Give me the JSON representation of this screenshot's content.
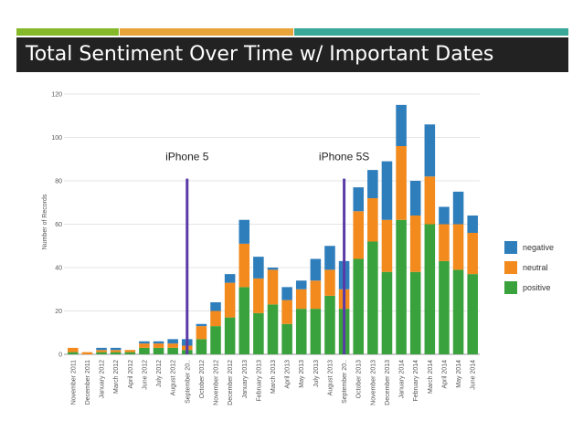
{
  "slide": {
    "title": "Total Sentiment Over Time w/ Important Dates"
  },
  "colors": {
    "accent_green": "#86b92a",
    "accent_orange": "#e8a33a",
    "accent_teal": "#3aa898",
    "banner": "#222222",
    "negative": "#2f7ebc",
    "neutral": "#f28a1d",
    "positive": "#3aa23c",
    "event_line": "#5a3aa6"
  },
  "chart_data": {
    "type": "bar",
    "stacked": true,
    "title": "Total Sentiment Over Time w/ Important Dates",
    "xlabel": "",
    "ylabel": "Number of Records",
    "ylim": [
      0,
      120
    ],
    "yticks": [
      0,
      20,
      40,
      60,
      80,
      100,
      120
    ],
    "categories": [
      "November 2011",
      "December 2011",
      "January 2012",
      "March 2012",
      "April 2012",
      "June 2012",
      "July 2012",
      "August 2012",
      "September 20..",
      "October 2012",
      "November 2012",
      "December 2012",
      "January 2013",
      "February 2013",
      "March 2013",
      "April 2013",
      "May 2013",
      "July 2013",
      "August 2013",
      "September 20..",
      "October 2013",
      "November 2013",
      "December 2013",
      "January 2014",
      "February 2014",
      "March 2014",
      "April 2014",
      "May 2014",
      "June 2014"
    ],
    "series": [
      {
        "name": "positive",
        "values": [
          1,
          0,
          1,
          1,
          1,
          3,
          3,
          3,
          2,
          7,
          13,
          17,
          31,
          19,
          23,
          14,
          21,
          21,
          27,
          21,
          44,
          52,
          38,
          62,
          38,
          60,
          43,
          39,
          37
        ]
      },
      {
        "name": "neutral",
        "values": [
          2,
          1,
          1,
          1,
          1,
          2,
          2,
          2,
          2,
          6,
          7,
          16,
          20,
          16,
          16,
          11,
          9,
          13,
          12,
          9,
          22,
          20,
          24,
          34,
          26,
          22,
          17,
          21,
          19
        ]
      },
      {
        "name": "negative",
        "values": [
          0,
          0,
          1,
          1,
          0,
          1,
          1,
          2,
          3,
          1,
          4,
          4,
          11,
          10,
          1,
          6,
          4,
          10,
          11,
          13,
          11,
          13,
          27,
          19,
          16,
          24,
          8,
          15,
          8
        ]
      }
    ],
    "legend": {
      "position": "right",
      "entries": [
        "negative",
        "neutral",
        "positive"
      ]
    },
    "annotations": [
      {
        "label": "iPhone 5",
        "category": "September 20..",
        "height": 81
      },
      {
        "label": "iPhone 5S",
        "category": "September 20..",
        "occurrence": 2,
        "height": 81
      }
    ]
  }
}
